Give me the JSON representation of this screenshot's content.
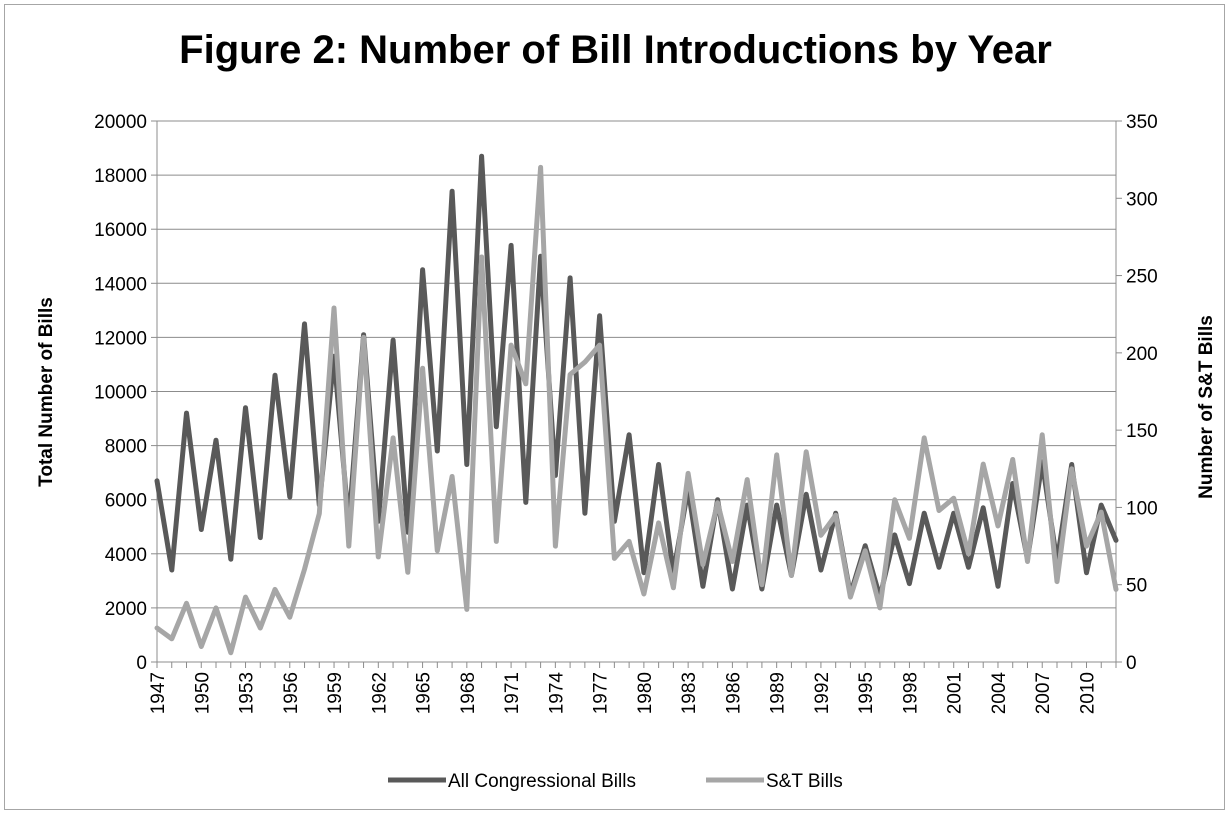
{
  "chart_data": {
    "type": "line",
    "title": "Figure 2: Number of Bill Introductions by Year",
    "ylabel": "Total Number of Bills",
    "y2label": "Number of S&T Bills",
    "ylim": [
      0,
      20000
    ],
    "y2lim": [
      0,
      350
    ],
    "yticks": [
      "0",
      "2000",
      "4000",
      "6000",
      "8000",
      "10000",
      "12000",
      "14000",
      "16000",
      "18000",
      "20000"
    ],
    "y2ticks": [
      "0",
      "50",
      "100",
      "150",
      "200",
      "250",
      "300",
      "350"
    ],
    "xticks": [
      "1947",
      "1950",
      "1953",
      "1956",
      "1959",
      "1962",
      "1965",
      "1968",
      "1971",
      "1974",
      "1977",
      "1980",
      "1983",
      "1986",
      "1989",
      "1992",
      "1995",
      "1998",
      "2001",
      "2004",
      "2007",
      "2010"
    ],
    "x_start": 1947,
    "x_end": 2012,
    "grid": true,
    "legend_position": "bottom",
    "colors": {
      "all_bills": "#595959",
      "st_bills": "#a6a6a6"
    },
    "series": [
      {
        "name": "All Congressional Bills",
        "axis": "left",
        "values": [
          6700,
          3400,
          9200,
          4900,
          8200,
          3800,
          9400,
          4600,
          10600,
          6100,
          12500,
          5800,
          11300,
          5100,
          12100,
          5200,
          11900,
          4800,
          14500,
          7800,
          17400,
          7300,
          18700,
          8700,
          15400,
          5900,
          15000,
          6900,
          14200,
          5500,
          12800,
          5200,
          8400,
          3300,
          7300,
          3300,
          6400,
          2800,
          6000,
          2700,
          5800,
          2700,
          5800,
          3200,
          6200,
          3400,
          5500,
          2500,
          4300,
          2400,
          4700,
          2900,
          5500,
          3500,
          5500,
          3500,
          5700,
          2800,
          6600,
          3800,
          7400,
          3700,
          7300,
          3300,
          5800,
          4500
        ]
      },
      {
        "name": "S&T Bills",
        "axis": "right",
        "values": [
          22,
          15,
          38,
          10,
          35,
          6,
          42,
          22,
          47,
          29,
          60,
          96,
          229,
          75,
          210,
          68,
          145,
          58,
          190,
          72,
          120,
          34,
          262,
          78,
          205,
          180,
          320,
          75,
          186,
          194,
          205,
          67,
          78,
          44,
          90,
          48,
          122,
          63,
          103,
          65,
          118,
          50,
          134,
          56,
          136,
          82,
          95,
          42,
          72,
          35,
          105,
          80,
          145,
          98,
          106,
          70,
          128,
          88,
          131,
          65,
          147,
          52,
          125,
          75,
          97,
          47
        ]
      }
    ]
  }
}
